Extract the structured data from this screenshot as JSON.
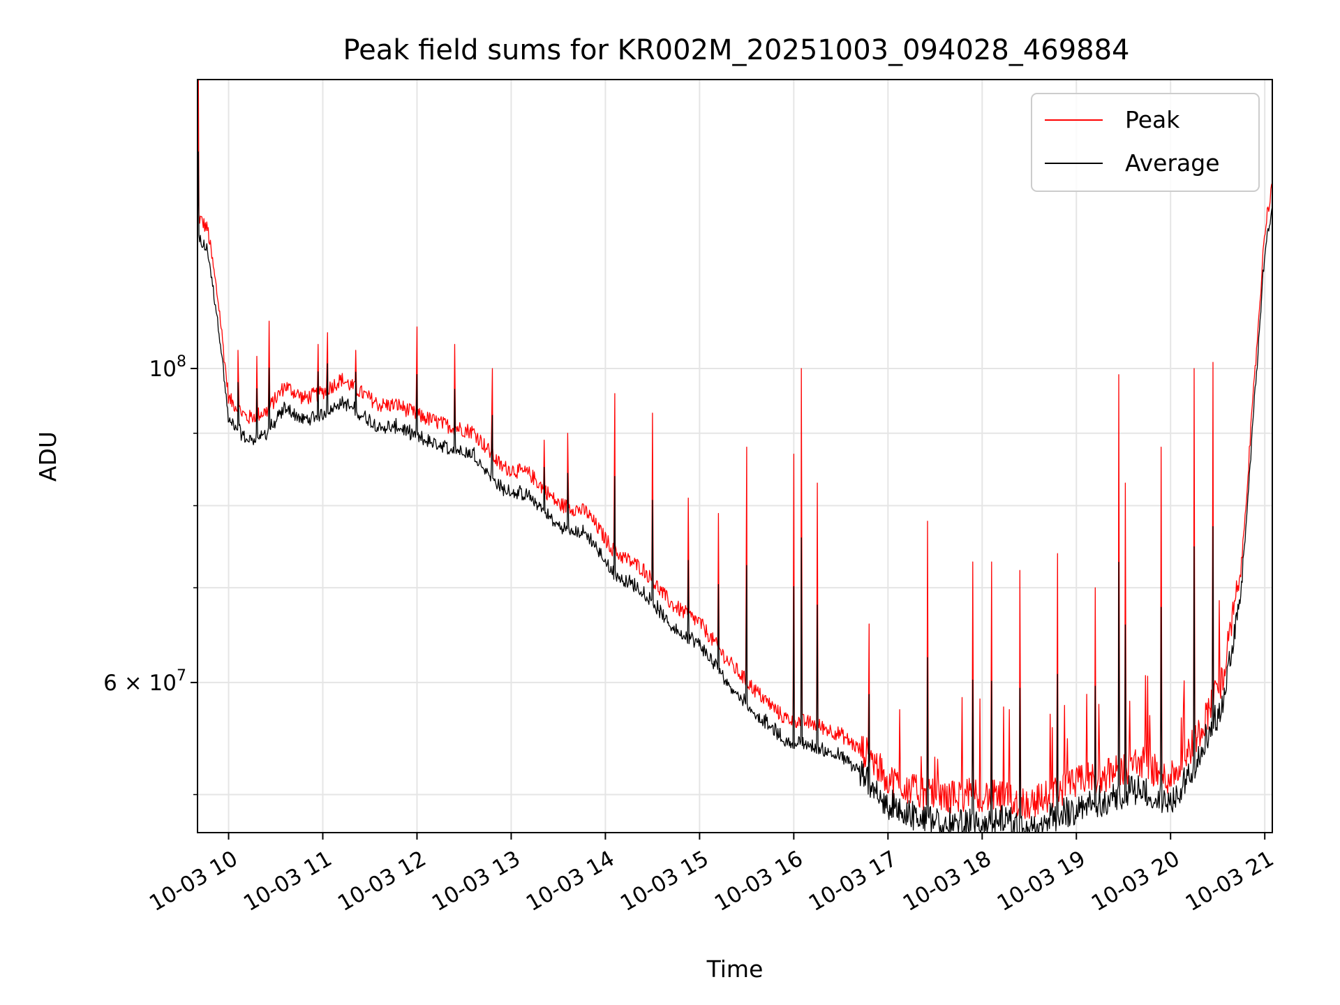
{
  "chart_data": {
    "type": "line",
    "title": "Peak field sums for KR002M_20251003_094028_469884",
    "xlabel": "Time",
    "ylabel": "ADU",
    "yscale": "log",
    "xlim_hours": [
      9.67,
      21.08
    ],
    "ylim": [
      47000000,
      160000000
    ],
    "grid": true,
    "legend_position": "upper-right",
    "x_ticks": [
      {
        "value": 10,
        "label": "10-03 10"
      },
      {
        "value": 11,
        "label": "10-03 11"
      },
      {
        "value": 12,
        "label": "10-03 12"
      },
      {
        "value": 13,
        "label": "10-03 13"
      },
      {
        "value": 14,
        "label": "10-03 14"
      },
      {
        "value": 15,
        "label": "10-03 15"
      },
      {
        "value": 16,
        "label": "10-03 16"
      },
      {
        "value": 17,
        "label": "10-03 17"
      },
      {
        "value": 18,
        "label": "10-03 18"
      },
      {
        "value": 19,
        "label": "10-03 19"
      },
      {
        "value": 20,
        "label": "10-03 20"
      },
      {
        "value": 21,
        "label": "10-03 21"
      }
    ],
    "y_major_ticks": [
      {
        "value": 100000000,
        "base": "10",
        "exp": "8",
        "prefix": ""
      },
      {
        "value": 60000000,
        "base": "10",
        "exp": "7",
        "prefix": "6 × "
      }
    ],
    "y_minor_ticks": [
      50000000,
      70000000,
      80000000,
      90000000
    ],
    "series": [
      {
        "name": "Peak",
        "color": "#ff0000",
        "baseline": [
          [
            9.67,
            128000000
          ],
          [
            9.78,
            125000000
          ],
          [
            9.9,
            110000000
          ],
          [
            10.0,
            95000000
          ],
          [
            10.2,
            92000000
          ],
          [
            10.4,
            93000000
          ],
          [
            10.6,
            97000000
          ],
          [
            10.8,
            95000000
          ],
          [
            11.0,
            96000000
          ],
          [
            11.2,
            98000000
          ],
          [
            11.4,
            96000000
          ],
          [
            11.6,
            94000000
          ],
          [
            11.8,
            94000000
          ],
          [
            12.0,
            92500000
          ],
          [
            12.3,
            91000000
          ],
          [
            12.6,
            90000000
          ],
          [
            12.9,
            85000000
          ],
          [
            13.2,
            84000000
          ],
          [
            13.5,
            80000000
          ],
          [
            13.8,
            79000000
          ],
          [
            14.1,
            74000000
          ],
          [
            14.4,
            72000000
          ],
          [
            14.7,
            68000000
          ],
          [
            15.0,
            66000000
          ],
          [
            15.3,
            62000000
          ],
          [
            15.6,
            59000000
          ],
          [
            15.9,
            56500000
          ],
          [
            16.2,
            56000000
          ],
          [
            16.5,
            55000000
          ],
          [
            16.8,
            53000000
          ],
          [
            17.0,
            51000000
          ],
          [
            17.3,
            50000000
          ],
          [
            17.6,
            49500000
          ],
          [
            17.9,
            49800000
          ],
          [
            18.2,
            49500000
          ],
          [
            18.5,
            49000000
          ],
          [
            18.8,
            50000000
          ],
          [
            19.1,
            51000000
          ],
          [
            19.4,
            51500000
          ],
          [
            19.7,
            52500000
          ],
          [
            19.95,
            51000000
          ],
          [
            20.1,
            52000000
          ],
          [
            20.3,
            55000000
          ],
          [
            20.55,
            60000000
          ],
          [
            20.75,
            72000000
          ],
          [
            20.9,
            100000000
          ],
          [
            21.0,
            125000000
          ],
          [
            21.08,
            135000000
          ]
        ],
        "spikes": [
          [
            9.68,
            160000000
          ],
          [
            10.1,
            103000000
          ],
          [
            10.3,
            102000000
          ],
          [
            10.43,
            108000000
          ],
          [
            10.95,
            104000000
          ],
          [
            11.05,
            106000000
          ],
          [
            11.35,
            103000000
          ],
          [
            12.0,
            107000000
          ],
          [
            12.4,
            104000000
          ],
          [
            12.8,
            100000000
          ],
          [
            13.35,
            89000000
          ],
          [
            13.6,
            90000000
          ],
          [
            14.1,
            96000000
          ],
          [
            14.5,
            93000000
          ],
          [
            14.88,
            81000000
          ],
          [
            15.2,
            79000000
          ],
          [
            15.5,
            88000000
          ],
          [
            16.0,
            87000000
          ],
          [
            16.08,
            100000000
          ],
          [
            16.25,
            83000000
          ],
          [
            16.8,
            66000000
          ],
          [
            17.42,
            78000000
          ],
          [
            17.9,
            73000000
          ],
          [
            18.1,
            73000000
          ],
          [
            18.4,
            72000000
          ],
          [
            18.8,
            74000000
          ],
          [
            19.2,
            70000000
          ],
          [
            19.45,
            99000000
          ],
          [
            19.52,
            83000000
          ],
          [
            19.9,
            88000000
          ],
          [
            20.25,
            100000000
          ],
          [
            20.45,
            101000000
          ]
        ]
      },
      {
        "name": "Average",
        "color": "#000000",
        "offset_ratio": 0.97
      }
    ]
  }
}
